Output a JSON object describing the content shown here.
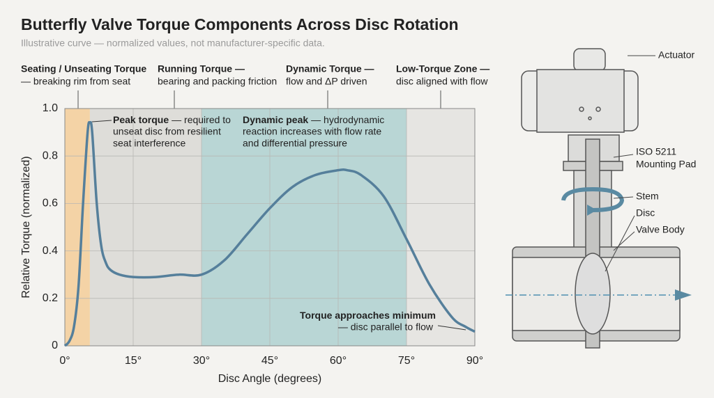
{
  "chart_data": {
    "type": "line",
    "title": "Butterfly Valve Torque Components Across Disc Rotation",
    "subtitle": "Illustrative curve — normalized values, not manufacturer-specific data.",
    "x_label": "Disc Angle (degrees)",
    "y_label": "Relative Torque (normalized)",
    "xlim": [
      0,
      90
    ],
    "ylim": [
      0,
      1
    ],
    "xticks": [
      {
        "value": 0,
        "label": "0°"
      },
      {
        "value": 15,
        "label": "15°"
      },
      {
        "value": 30,
        "label": "30°"
      },
      {
        "value": 45,
        "label": "45°"
      },
      {
        "value": 60,
        "label": "60°"
      },
      {
        "value": 75,
        "label": "75°"
      },
      {
        "value": 90,
        "label": "90°"
      }
    ],
    "yticks": [
      0,
      0.2,
      0.4,
      0.6,
      0.8,
      {
        "value": 1,
        "label": "1.0"
      }
    ],
    "grid": true,
    "color": "#557f9b",
    "x": [
      0,
      1,
      2,
      3,
      4,
      5,
      5.5,
      6,
      7,
      8,
      9,
      10,
      12,
      15,
      20,
      25,
      30,
      35,
      40,
      45,
      50,
      55,
      60,
      62,
      65,
      70,
      75,
      80,
      85,
      88,
      90
    ],
    "values": [
      0,
      0.02,
      0.08,
      0.25,
      0.6,
      0.9,
      0.94,
      0.9,
      0.6,
      0.42,
      0.35,
      0.32,
      0.3,
      0.29,
      0.29,
      0.3,
      0.3,
      0.36,
      0.47,
      0.58,
      0.67,
      0.72,
      0.74,
      0.74,
      0.72,
      0.63,
      0.45,
      0.26,
      0.12,
      0.08,
      0.06
    ],
    "zones": [
      {
        "title": "Seating / Unseating Torque",
        "lines": [
          "— breaking rim from seat"
        ],
        "start": 0,
        "end": 5.5,
        "color": "#f4d3a6"
      },
      {
        "title": "Running Torque —",
        "lines": [
          "bearing and packing friction"
        ],
        "start": 5.5,
        "end": 30,
        "color": "#deddd9"
      },
      {
        "title": "Dynamic Torque —",
        "lines": [
          "flow and ΔP driven"
        ],
        "start": 30,
        "end": 75,
        "color": "#b9d6d5"
      },
      {
        "title": "Low-Torque Zone —",
        "lines": [
          "disc aligned with flow"
        ],
        "start": 75,
        "end": 90,
        "color": "#e6e5e2"
      }
    ],
    "annotations": [
      {
        "title": "Peak torque",
        "lines": [
          "— required to",
          "unseat disc from resilient",
          "seat interference"
        ]
      },
      {
        "title": "Dynamic peak",
        "lines": [
          "— hydrodynamic",
          "reaction increases with flow rate",
          "and differential pressure"
        ]
      },
      {
        "title": "Torque approaches minimum",
        "lines": [
          "— disc parallel to flow"
        ]
      }
    ]
  },
  "diagram": {
    "labels": [
      [
        "Actuator"
      ],
      [
        "ISO 5211",
        "Mounting Pad"
      ],
      [
        "Stem"
      ],
      [
        "Disc"
      ],
      [
        "Valve Body"
      ]
    ]
  }
}
